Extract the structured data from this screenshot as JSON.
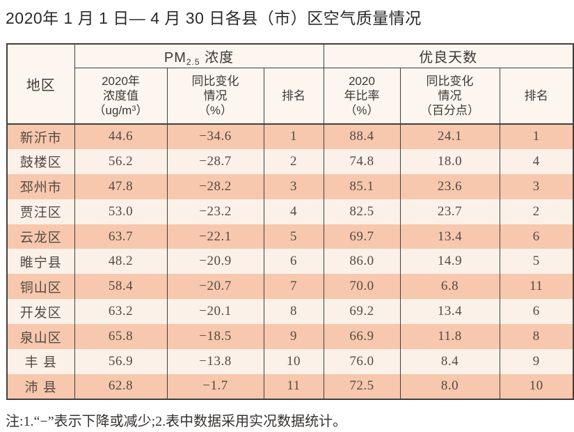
{
  "page": {
    "title": "2020年 1 月 1 日— 4 月 30 日各县（市）区空气质量情况",
    "note": "注:1.“−”表示下降或减少;2.表中数据采用实况数据统计。"
  },
  "table": {
    "corner_header": "地区",
    "group_pm": {
      "prefix": "PM",
      "sub": "2.5",
      "suffix": " 浓度"
    },
    "group_good": {
      "label": "优良天数"
    },
    "sub_headers": [
      {
        "line1": "2020年",
        "line2": "浓度值",
        "line3_prefix": "（ug/m",
        "line3_sup": "3",
        "line3_suffix": "）"
      },
      {
        "line1": "同比变化",
        "line2": "情况",
        "line3": "（%）"
      },
      {
        "label": "排名"
      },
      {
        "line1": "2020",
        "line2": "年比率",
        "line3": "（%）"
      },
      {
        "line1": "同比变化",
        "line2": "情况",
        "line3": "（百分点）"
      },
      {
        "label": "排名"
      }
    ],
    "column_keys": [
      "region",
      "pm_value",
      "pm_change",
      "pm_rank",
      "good_rate",
      "good_change",
      "good_rank"
    ],
    "rows": [
      {
        "region": "新沂市",
        "pm_value": "44.6",
        "pm_change": "−34.6",
        "pm_rank": "1",
        "good_rate": "88.4",
        "good_change": "24.1",
        "good_rank": "1"
      },
      {
        "region": "鼓楼区",
        "pm_value": "56.2",
        "pm_change": "−28.7",
        "pm_rank": "2",
        "good_rate": "74.8",
        "good_change": "18.0",
        "good_rank": "4"
      },
      {
        "region": "邳州市",
        "pm_value": "47.8",
        "pm_change": "−28.2",
        "pm_rank": "3",
        "good_rate": "85.1",
        "good_change": "23.6",
        "good_rank": "3"
      },
      {
        "region": "贾汪区",
        "pm_value": "53.0",
        "pm_change": "−23.2",
        "pm_rank": "4",
        "good_rate": "82.5",
        "good_change": "23.7",
        "good_rank": "2"
      },
      {
        "region": "云龙区",
        "pm_value": "63.7",
        "pm_change": "−22.1",
        "pm_rank": "5",
        "good_rate": "69.7",
        "good_change": "13.4",
        "good_rank": "6"
      },
      {
        "region": "睢宁县",
        "pm_value": "48.2",
        "pm_change": "−20.9",
        "pm_rank": "6",
        "good_rate": "86.0",
        "good_change": "14.9",
        "good_rank": "5"
      },
      {
        "region": "铜山区",
        "pm_value": "58.4",
        "pm_change": "−20.7",
        "pm_rank": "7",
        "good_rate": "70.0",
        "good_change": "6.8",
        "good_rank": "11"
      },
      {
        "region": "开发区",
        "pm_value": "63.2",
        "pm_change": "−20.1",
        "pm_rank": "8",
        "good_rate": "69.2",
        "good_change": "13.4",
        "good_rank": "6"
      },
      {
        "region": "泉山区",
        "pm_value": "65.8",
        "pm_change": "−18.5",
        "pm_rank": "9",
        "good_rate": "66.9",
        "good_change": "11.8",
        "good_rank": "8"
      },
      {
        "region": "丰 县",
        "pm_value": "56.9",
        "pm_change": "−13.8",
        "pm_rank": "10",
        "good_rate": "76.0",
        "good_change": "8.4",
        "good_rank": "9"
      },
      {
        "region": "沛 县",
        "pm_value": "62.8",
        "pm_change": "−1.7",
        "pm_rank": "11",
        "good_rate": "72.5",
        "good_change": "8.0",
        "good_rank": "10"
      }
    ]
  },
  "colors": {
    "row_odd": "#f7c8ad",
    "row_even": "#fcf1e9",
    "header_bg": "#fdf6ef",
    "border": "#3f3e3c",
    "data_text": "#524a45",
    "header_text": "#3b3835",
    "title_text": "#2c2a28",
    "note_text": "#353230"
  }
}
